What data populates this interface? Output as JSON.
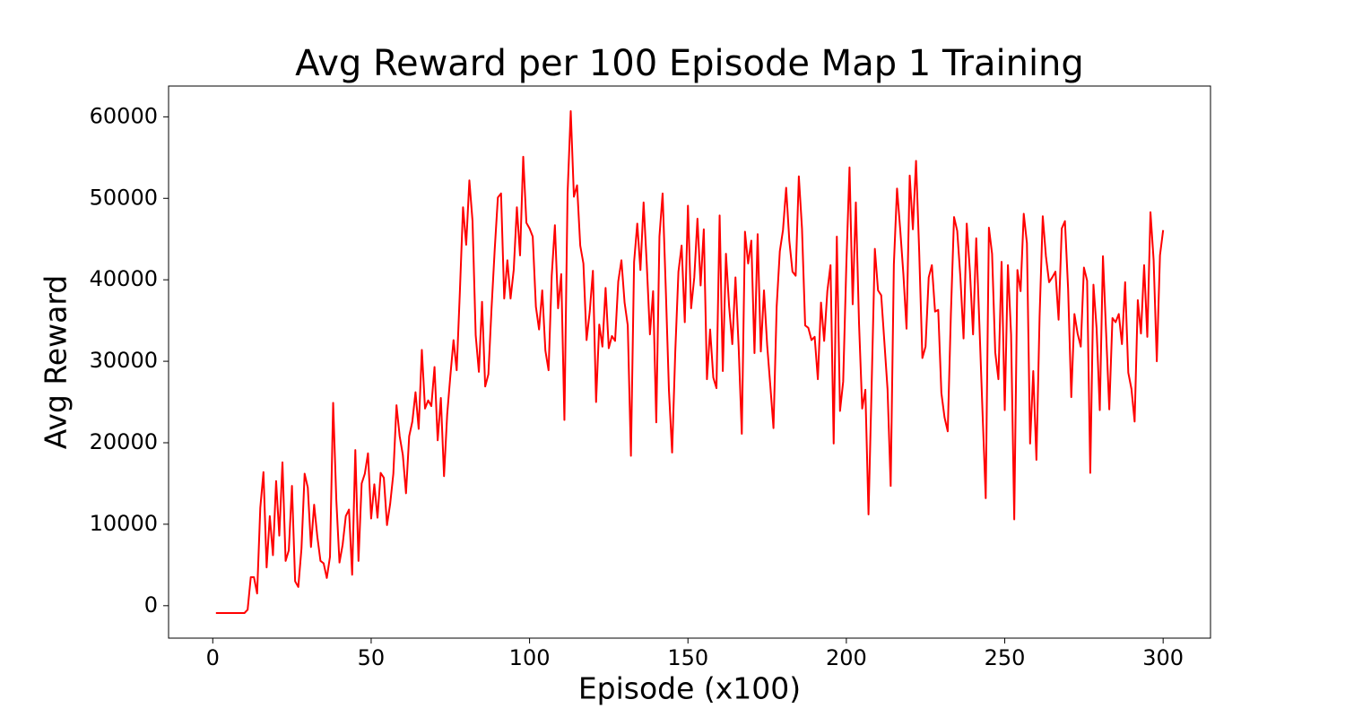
{
  "chart_data": {
    "type": "line",
    "title": "Avg Reward per 100 Episode Map 1 Training",
    "x_label": "Episode (x100)",
    "y_label": "Avg Reward",
    "color": "#ff0000",
    "xlim": [
      -13.95,
      314.95
    ],
    "ylim": [
      -3980,
      63780
    ],
    "xticks": [
      0,
      50,
      100,
      150,
      200,
      250,
      300
    ],
    "yticks": [
      0,
      10000,
      20000,
      30000,
      40000,
      50000,
      60000
    ],
    "x": [
      1,
      2,
      3,
      4,
      5,
      6,
      7,
      8,
      9,
      10,
      11,
      12,
      13,
      14,
      15,
      16,
      17,
      18,
      19,
      20,
      21,
      22,
      23,
      24,
      25,
      26,
      27,
      28,
      29,
      30,
      31,
      32,
      33,
      34,
      35,
      36,
      37,
      38,
      39,
      40,
      41,
      42,
      43,
      44,
      45,
      46,
      47,
      48,
      49,
      50,
      51,
      52,
      53,
      54,
      55,
      56,
      57,
      58,
      59,
      60,
      61,
      62,
      63,
      64,
      65,
      66,
      67,
      68,
      69,
      70,
      71,
      72,
      73,
      74,
      75,
      76,
      77,
      78,
      79,
      80,
      81,
      82,
      83,
      84,
      85,
      86,
      87,
      88,
      89,
      90,
      91,
      92,
      93,
      94,
      95,
      96,
      97,
      98,
      99,
      100,
      101,
      102,
      103,
      104,
      105,
      106,
      107,
      108,
      109,
      110,
      111,
      112,
      113,
      114,
      115,
      116,
      117,
      118,
      119,
      120,
      121,
      122,
      123,
      124,
      125,
      126,
      127,
      128,
      129,
      130,
      131,
      132,
      133,
      134,
      135,
      136,
      137,
      138,
      139,
      140,
      141,
      142,
      143,
      144,
      145,
      146,
      147,
      148,
      149,
      150,
      151,
      152,
      153,
      154,
      155,
      156,
      157,
      158,
      159,
      160,
      161,
      162,
      163,
      164,
      165,
      166,
      167,
      168,
      169,
      170,
      171,
      172,
      173,
      174,
      175,
      176,
      177,
      178,
      179,
      180,
      181,
      182,
      183,
      184,
      185,
      186,
      187,
      188,
      189,
      190,
      191,
      192,
      193,
      194,
      195,
      196,
      197,
      198,
      199,
      200,
      201,
      202,
      203,
      204,
      205,
      206,
      207,
      208,
      209,
      210,
      211,
      212,
      213,
      214,
      215,
      216,
      217,
      218,
      219,
      220,
      221,
      222,
      223,
      224,
      225,
      226,
      227,
      228,
      229,
      230,
      231,
      232,
      233,
      234,
      235,
      236,
      237,
      238,
      239,
      240,
      241,
      242,
      243,
      244,
      245,
      246,
      247,
      248,
      249,
      250,
      251,
      252,
      253,
      254,
      255,
      256,
      257,
      258,
      259,
      260,
      261,
      262,
      263,
      264,
      265,
      266,
      267,
      268,
      269,
      270,
      271,
      272,
      273,
      274,
      275,
      276,
      277,
      278,
      279,
      280,
      281,
      282,
      283,
      284,
      285,
      286,
      287,
      288,
      289,
      290,
      291,
      292,
      293,
      294,
      295,
      296,
      297,
      298,
      299,
      300
    ],
    "values": [
      -900,
      -900,
      -900,
      -900,
      -900,
      -900,
      -900,
      -900,
      -900,
      -900,
      -500,
      3500,
      3500,
      1500,
      12000,
      16400,
      4700,
      11000,
      6200,
      15300,
      8600,
      17600,
      5500,
      6800,
      14700,
      3000,
      2300,
      7000,
      16200,
      14500,
      7200,
      12400,
      8500,
      5500,
      5200,
      3400,
      6000,
      24900,
      13000,
      5300,
      7500,
      11000,
      11800,
      3800,
      19100,
      5500,
      15000,
      16200,
      18700,
      10700,
      14900,
      10800,
      16300,
      15700,
      9900,
      12500,
      16200,
      24600,
      20800,
      18500,
      13800,
      20800,
      22600,
      26200,
      21700,
      31400,
      24200,
      25200,
      24500,
      29300,
      20300,
      25500,
      15900,
      23500,
      28200,
      32600,
      28900,
      38500,
      48900,
      44300,
      52200,
      47200,
      33200,
      28700,
      37300,
      26900,
      28400,
      36500,
      43700,
      50100,
      50600,
      37700,
      42400,
      37700,
      41200,
      48900,
      43000,
      55100,
      47000,
      46300,
      45300,
      36700,
      33900,
      38700,
      31300,
      28900,
      40500,
      46700,
      36500,
      40700,
      22800,
      50600,
      60700,
      50200,
      51600,
      44200,
      42000,
      32600,
      36100,
      41100,
      25000,
      34500,
      31800,
      39000,
      31600,
      33100,
      32500,
      39800,
      42400,
      37200,
      34400,
      18400,
      42200,
      46900,
      41200,
      49500,
      41900,
      33300,
      38600,
      22500,
      45300,
      50600,
      38900,
      26400,
      18800,
      31200,
      41000,
      44200,
      34800,
      49100,
      36500,
      40300,
      47500,
      39300,
      46200,
      27800,
      33900,
      28000,
      26700,
      47900,
      28800,
      43200,
      36700,
      32100,
      40300,
      31800,
      21100,
      45900,
      42000,
      44800,
      31000,
      45600,
      31200,
      38700,
      32000,
      27000,
      21800,
      36700,
      43500,
      46100,
      51300,
      44800,
      41000,
      40500,
      52700,
      46300,
      34400,
      34100,
      32600,
      33000,
      27800,
      37200,
      32500,
      38600,
      41800,
      19900,
      45300,
      23900,
      27500,
      41900,
      53800,
      37000,
      49500,
      34700,
      24200,
      26500,
      11200,
      27300,
      43800,
      38700,
      38100,
      32400,
      26600,
      14700,
      41900,
      51200,
      46200,
      40700,
      34000,
      52800,
      46200,
      54600,
      43400,
      30400,
      31800,
      40300,
      41800,
      36100,
      36300,
      26100,
      23100,
      21400,
      35800,
      47700,
      46000,
      40300,
      32800,
      46900,
      41100,
      33300,
      45100,
      34500,
      23600,
      13200,
      46400,
      43200,
      31100,
      27800,
      42200,
      24000,
      41800,
      33300,
      10600,
      41200,
      38600,
      48100,
      44500,
      19900,
      28800,
      17900,
      35500,
      47800,
      42900,
      39700,
      40300,
      41000,
      35100,
      46300,
      47200,
      38900,
      25600,
      35800,
      33400,
      31800,
      41500,
      39900,
      16300,
      39400,
      34000,
      24000,
      42900,
      33500,
      24100,
      35300,
      34800,
      35800,
      32100,
      39700,
      28600,
      26600,
      22600,
      37500,
      33400,
      41800,
      33000,
      48300,
      42400,
      30000,
      43000,
      46100
    ]
  }
}
